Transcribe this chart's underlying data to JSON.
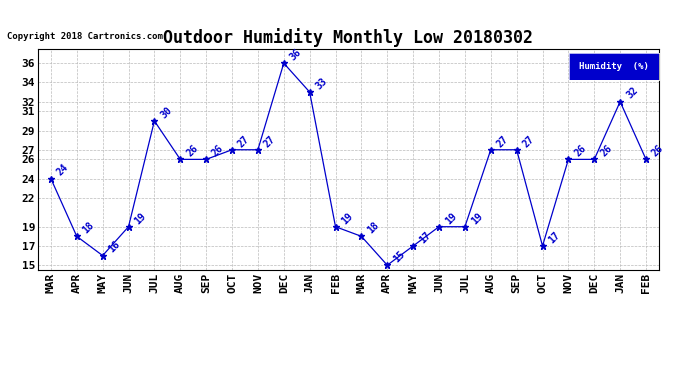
{
  "title": "Outdoor Humidity Monthly Low 20180302",
  "copyright": "Copyright 2018 Cartronics.com",
  "legend_label": "Humidity  (%)",
  "x_labels": [
    "MAR",
    "APR",
    "MAY",
    "JUN",
    "JUL",
    "AUG",
    "SEP",
    "OCT",
    "NOV",
    "DEC",
    "JAN",
    "FEB",
    "MAR",
    "APR",
    "MAY",
    "JUN",
    "JUL",
    "AUG",
    "SEP",
    "OCT",
    "NOV",
    "DEC",
    "JAN",
    "FEB"
  ],
  "y_values": [
    24,
    18,
    16,
    19,
    30,
    26,
    26,
    27,
    27,
    36,
    33,
    19,
    18,
    15,
    17,
    19,
    19,
    27,
    27,
    17,
    26,
    26,
    32,
    26
  ],
  "ylim_min": 14.5,
  "ylim_max": 37.5,
  "yticks": [
    15,
    17,
    19,
    22,
    24,
    26,
    27,
    29,
    31,
    32,
    34,
    36
  ],
  "line_color": "#0000cc",
  "marker_color": "#0000cc",
  "background_color": "#ffffff",
  "grid_color": "#bbbbbb",
  "title_fontsize": 12,
  "tick_fontsize": 8,
  "annot_fontsize": 7,
  "legend_bg": "#0000cc",
  "legend_fg": "#ffffff"
}
